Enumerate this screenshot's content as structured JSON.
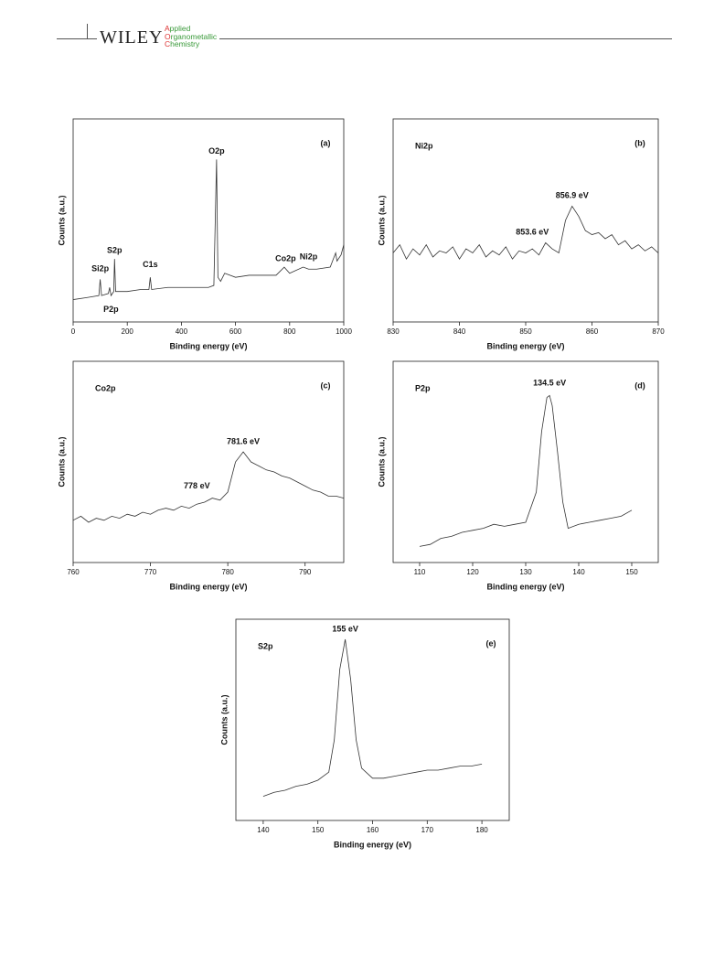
{
  "header": {
    "publisher": "WILEY",
    "journal": [
      "Applied",
      "Organometallic",
      "Chemistry"
    ]
  },
  "chart_data": [
    {
      "type": "line",
      "panel_label": "(a)",
      "xlabel": "Binding energy (eV)",
      "ylabel": "Counts (a.u.)",
      "xlim": [
        0,
        1000
      ],
      "xticks": [
        0,
        200,
        400,
        600,
        800,
        1000
      ],
      "ylim": [
        0,
        100
      ],
      "color": "#333333",
      "x": [
        0,
        50,
        95,
        100,
        105,
        130,
        135,
        140,
        150,
        153,
        157,
        200,
        250,
        280,
        285,
        290,
        350,
        400,
        450,
        500,
        520,
        530,
        535,
        545,
        560,
        600,
        650,
        700,
        750,
        780,
        800,
        850,
        870,
        900,
        950,
        970,
        975,
        990,
        1000
      ],
      "values": [
        11,
        12,
        13,
        21,
        13,
        14,
        17,
        13,
        15,
        31,
        15,
        15,
        16,
        16,
        22,
        16,
        17,
        17,
        17,
        17,
        18,
        80,
        22,
        20,
        24,
        22,
        23,
        23,
        23,
        27,
        24,
        27,
        26,
        26,
        27,
        34,
        30,
        33,
        38
      ],
      "annotations": [
        {
          "text": "O2p",
          "x": 530,
          "y": 84
        },
        {
          "text": "S2p",
          "x": 153,
          "y": 35
        },
        {
          "text": "Si2p",
          "x": 100,
          "y": 26
        },
        {
          "text": "C1s",
          "x": 285,
          "y": 28
        },
        {
          "text": "P2p",
          "x": 140,
          "y": 6
        },
        {
          "text": "Co2p",
          "x": 785,
          "y": 31
        },
        {
          "text": "Ni2p",
          "x": 870,
          "y": 32
        }
      ]
    },
    {
      "type": "line",
      "title": "Ni2p",
      "panel_label": "(b)",
      "xlabel": "Binding energy (eV)",
      "ylabel": "Counts (a.u.)",
      "xlim": [
        830,
        870
      ],
      "xticks": [
        830,
        840,
        850,
        860,
        870
      ],
      "ylim": [
        0,
        100
      ],
      "color": "#333333",
      "x": [
        830,
        831,
        832,
        833,
        834,
        835,
        836,
        837,
        838,
        839,
        840,
        841,
        842,
        843,
        844,
        845,
        846,
        847,
        848,
        849,
        850,
        851,
        852,
        853,
        854,
        855,
        856,
        857,
        858,
        859,
        860,
        861,
        862,
        863,
        864,
        865,
        866,
        867,
        868,
        869,
        870
      ],
      "values": [
        34,
        38,
        31,
        36,
        33,
        38,
        32,
        35,
        34,
        37,
        31,
        36,
        34,
        38,
        32,
        35,
        33,
        37,
        31,
        35,
        34,
        36,
        33,
        39,
        36,
        34,
        50,
        57,
        52,
        45,
        43,
        44,
        41,
        43,
        38,
        40,
        36,
        38,
        35,
        37,
        34
      ],
      "annotations": [
        {
          "text": "856.9 eV",
          "x": 857,
          "y": 62
        },
        {
          "text": "853.6 eV",
          "x": 851,
          "y": 44
        }
      ]
    },
    {
      "type": "line",
      "title": "Co2p",
      "panel_label": "(c)",
      "xlabel": "Binding energy (eV)",
      "ylabel": "Counts (a.u.)",
      "xlim": [
        760,
        795
      ],
      "xticks": [
        760,
        770,
        780,
        790
      ],
      "ylim": [
        0,
        100
      ],
      "color": "#333333",
      "x": [
        760,
        761,
        762,
        763,
        764,
        765,
        766,
        767,
        768,
        769,
        770,
        771,
        772,
        773,
        774,
        775,
        776,
        777,
        778,
        779,
        780,
        781,
        782,
        783,
        784,
        785,
        786,
        787,
        788,
        789,
        790,
        791,
        792,
        793,
        794,
        795
      ],
      "values": [
        21,
        23,
        20,
        22,
        21,
        23,
        22,
        24,
        23,
        25,
        24,
        26,
        27,
        26,
        28,
        27,
        29,
        30,
        32,
        31,
        35,
        50,
        55,
        50,
        48,
        46,
        45,
        43,
        42,
        40,
        38,
        36,
        35,
        33,
        33,
        32
      ],
      "annotations": [
        {
          "text": "781.6 eV",
          "x": 782,
          "y": 60
        },
        {
          "text": "778 eV",
          "x": 776,
          "y": 38
        }
      ]
    },
    {
      "type": "line",
      "title": "P2p",
      "panel_label": "(d)",
      "xlabel": "Binding energy (eV)",
      "ylabel": "Counts (a.u.)",
      "xlim": [
        105,
        155
      ],
      "xticks": [
        110,
        120,
        130,
        140,
        150
      ],
      "ylim": [
        0,
        100
      ],
      "color": "#333333",
      "x": [
        110,
        112,
        114,
        116,
        118,
        120,
        122,
        124,
        126,
        128,
        130,
        132,
        133,
        134,
        134.5,
        135,
        136,
        137,
        138,
        140,
        142,
        144,
        146,
        148,
        150
      ],
      "values": [
        8,
        9,
        12,
        13,
        15,
        16,
        17,
        19,
        18,
        19,
        20,
        35,
        65,
        82,
        83,
        78,
        55,
        30,
        17,
        19,
        20,
        21,
        22,
        23,
        26
      ],
      "annotations": [
        {
          "text": "134.5 eV",
          "x": 134.5,
          "y": 89
        }
      ]
    },
    {
      "type": "line",
      "title": "S2p",
      "panel_label": "(e)",
      "xlabel": "Binding energy (eV)",
      "ylabel": "Counts (a.u.)",
      "xlim": [
        135,
        185
      ],
      "xticks": [
        140,
        150,
        160,
        170,
        180
      ],
      "ylim": [
        0,
        100
      ],
      "color": "#333333",
      "x": [
        140,
        142,
        144,
        146,
        148,
        150,
        152,
        153,
        154,
        155,
        156,
        157,
        158,
        160,
        162,
        164,
        166,
        168,
        170,
        172,
        174,
        176,
        178,
        180
      ],
      "values": [
        12,
        14,
        15,
        17,
        18,
        20,
        24,
        40,
        75,
        90,
        70,
        40,
        26,
        21,
        21,
        22,
        23,
        24,
        25,
        25,
        26,
        27,
        27,
        28
      ],
      "annotations": [
        {
          "text": "155 eV",
          "x": 155,
          "y": 95
        }
      ]
    }
  ]
}
